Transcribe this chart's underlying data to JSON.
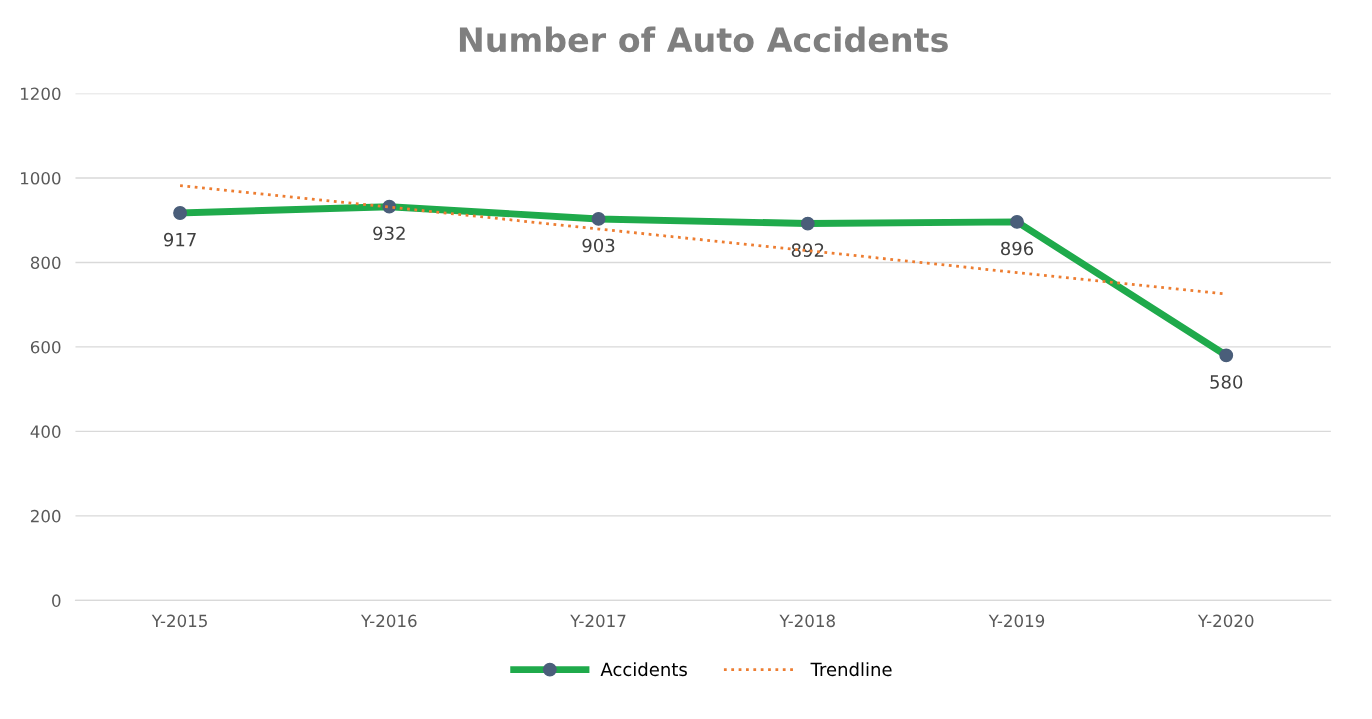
{
  "chart_data": {
    "type": "line",
    "title": "Number of Auto Accidents",
    "categories": [
      "Y-2015",
      "Y-2016",
      "Y-2017",
      "Y-2018",
      "Y-2019",
      "Y-2020"
    ],
    "series": [
      {
        "name": "Accidents",
        "color": "#1faa4b",
        "values": [
          917,
          932,
          903,
          892,
          896,
          580
        ],
        "marker": "circle",
        "line_style": "solid",
        "data_labels": true
      },
      {
        "name": "Trendline",
        "color": "#ed7d31",
        "values": [
          982,
          931,
          879,
          828,
          776,
          725
        ],
        "marker": "none",
        "line_style": "dotted"
      }
    ],
    "ylim": [
      0,
      1200
    ],
    "yticks": [
      0,
      200,
      400,
      600,
      800,
      1000,
      1200
    ],
    "grid": "y",
    "legend": "bottom"
  }
}
